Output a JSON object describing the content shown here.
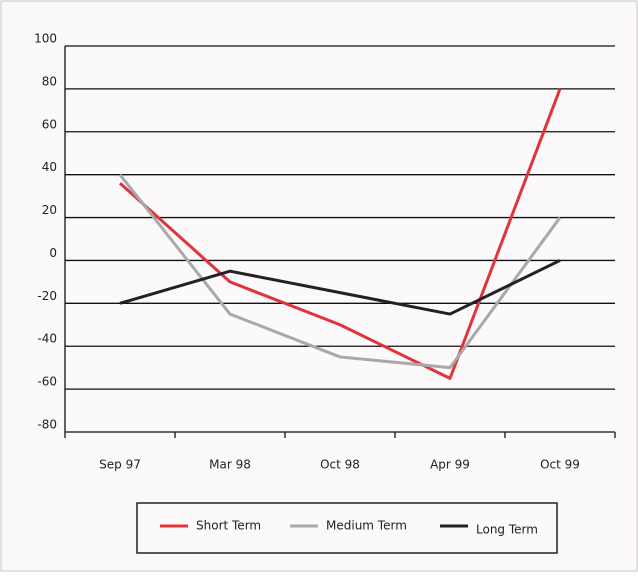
{
  "chart_data": {
    "type": "line",
    "categories": [
      "Sep 97",
      "Mar 98",
      "Oct 98",
      "Apr 99",
      "Oct 99"
    ],
    "series": [
      {
        "name": "Short Term",
        "color": "#e0343c",
        "values": [
          36,
          -10,
          -30,
          -55,
          80
        ]
      },
      {
        "name": "Medium Term",
        "color": "#a9a9a9",
        "values": [
          40,
          -25,
          -45,
          -50,
          20
        ]
      },
      {
        "name": "Long Term",
        "color": "#222222",
        "values": [
          -20,
          -5,
          -15,
          -25,
          0
        ]
      }
    ],
    "ylim": [
      -80,
      100
    ],
    "yticks": [
      -80,
      -60,
      -40,
      -20,
      0,
      20,
      40,
      60,
      80,
      100
    ],
    "grid": true,
    "legend": "bottom"
  }
}
